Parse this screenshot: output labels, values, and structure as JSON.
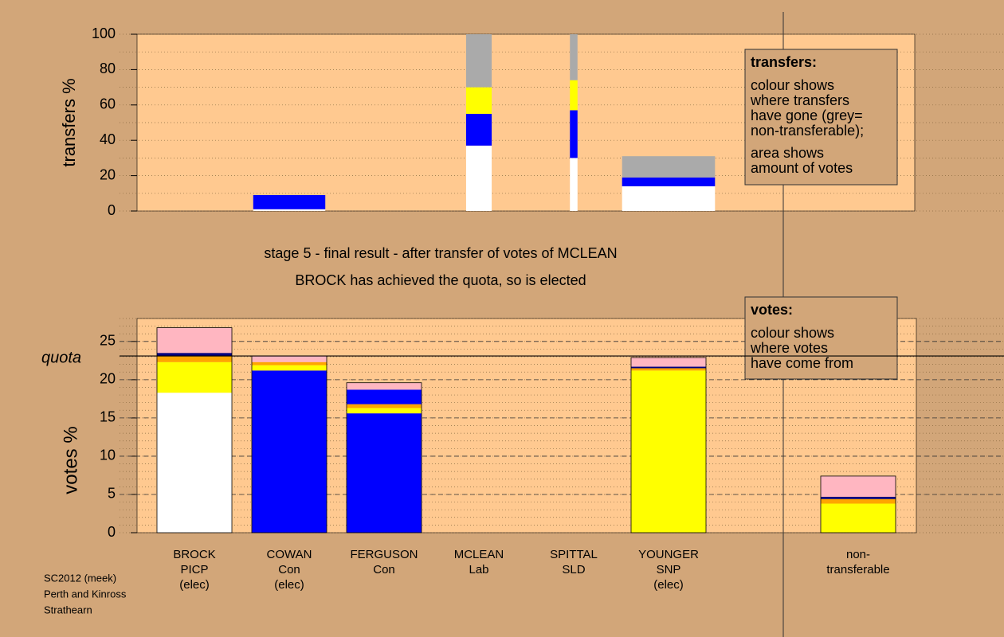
{
  "chart_data": [
    {
      "type": "bar",
      "stacked": true,
      "ylabel": "transfers %",
      "ylim": [
        0,
        100
      ],
      "yticks": [
        0,
        20,
        40,
        60,
        80,
        100
      ],
      "minor_grid": 10,
      "widths": [
        0,
        0.76,
        0,
        0.27,
        0.08,
        0.98,
        0,
        0
      ],
      "series": [
        {
          "color": "#ffffff",
          "values": [
            0,
            1,
            0,
            37,
            30,
            14,
            0,
            0
          ]
        },
        {
          "color": "#0000ff",
          "values": [
            0,
            8,
            0,
            18,
            27,
            5,
            0,
            0
          ]
        },
        {
          "color": "#ffff00",
          "values": [
            0,
            0,
            0,
            15,
            17,
            0,
            0,
            0
          ]
        },
        {
          "color": "#aaaaaa",
          "values": [
            0,
            0,
            0,
            30,
            26,
            12,
            0,
            0
          ]
        }
      ],
      "legend": {
        "title": "transfers:",
        "lines": [
          "colour shows",
          "where transfers",
          "have gone (grey=",
          "non-transferable);"
        ],
        "lines2": [
          "area shows",
          "amount of votes"
        ]
      }
    },
    {
      "type": "bar",
      "stacked": true,
      "ylabel": "votes %",
      "ylim": [
        0,
        28
      ],
      "yticks": [
        0,
        5,
        10,
        15,
        20,
        25
      ],
      "minor_grid": 1,
      "title": "stage 5 - final result - after transfer of votes of MCLEAN",
      "subtitle": "BROCK has achieved the quota, so is elected",
      "quota": {
        "value": 23.1,
        "label": "quota"
      },
      "categories": [
        [
          "BROCK",
          "PICP",
          "(elec)"
        ],
        [
          "COWAN",
          "Con",
          "(elec)"
        ],
        [
          "FERGUSON",
          "Con"
        ],
        [
          "MCLEAN",
          "Lab"
        ],
        [
          "SPITTAL",
          "SLD"
        ],
        [
          "YOUNGER",
          "SNP",
          "(elec)"
        ],
        null,
        [
          "non-",
          "transferable"
        ]
      ],
      "series": [
        {
          "color": "#ffffff",
          "values": [
            18.3,
            0,
            0,
            0,
            0,
            0,
            0,
            0
          ]
        },
        {
          "color": "#0000ff",
          "values": [
            0,
            21.2,
            15.6,
            0,
            0,
            0,
            0,
            0
          ]
        },
        {
          "color": "#ffff00",
          "values": [
            4.0,
            0.7,
            0.7,
            0,
            0,
            21.2,
            0,
            3.8
          ]
        },
        {
          "color": "#ffa500",
          "values": [
            0.8,
            0.4,
            0.5,
            0,
            0,
            0.3,
            0,
            0.6
          ]
        },
        {
          "color": "#0000ff",
          "values": [
            0,
            0,
            1.9,
            0,
            0,
            0,
            0,
            0
          ]
        },
        {
          "color": "#000080",
          "values": [
            0.4,
            0,
            0,
            0,
            0,
            0.2,
            0,
            0.3
          ]
        },
        {
          "color": "#ffb6c1",
          "values": [
            3.3,
            0.8,
            0.9,
            0,
            0,
            1.2,
            0,
            2.7
          ]
        }
      ],
      "legend": {
        "title": "votes:",
        "lines": [
          "colour shows",
          "where votes",
          "have come from"
        ]
      },
      "footer": [
        "SC2012 (meek)",
        "Perth and Kinross",
        "Strathearn"
      ]
    }
  ]
}
